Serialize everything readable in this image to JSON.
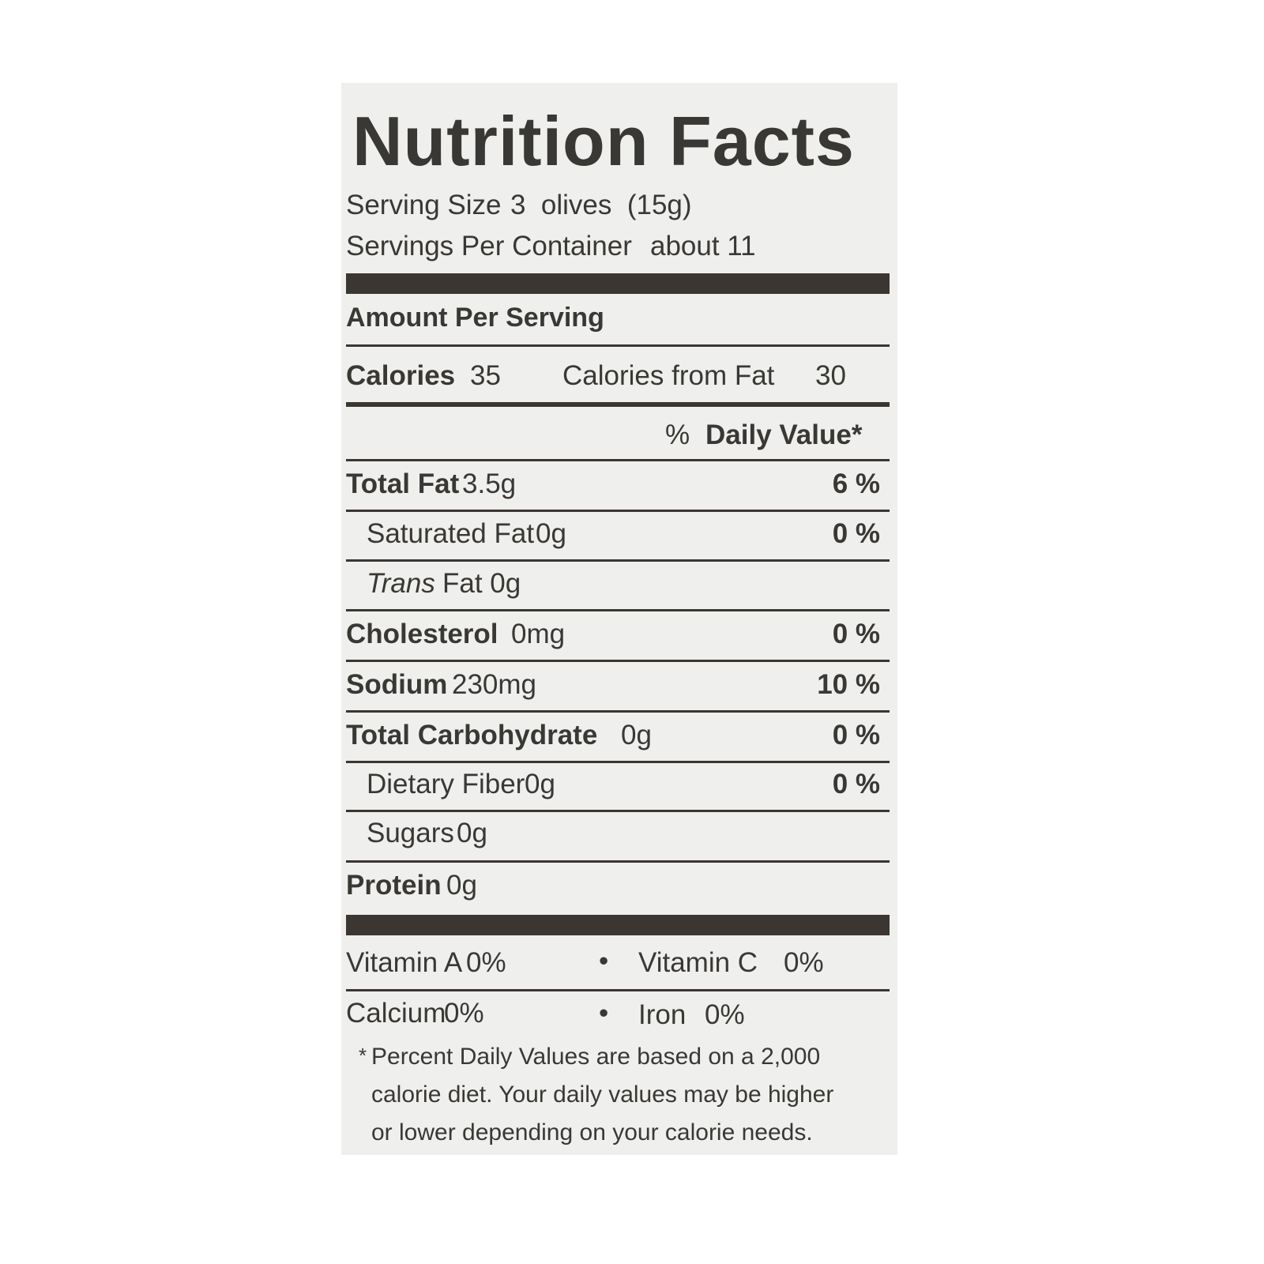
{
  "title": "Nutrition Facts",
  "serving_size_label": "Serving Size",
  "serving_size_value": "3  olives  (15g)",
  "servings_label": "Servings Per Container",
  "servings_value": "about 11",
  "amount_per_serving": "Amount Per Serving",
  "calories_label": "Calories",
  "calories_value": "35",
  "calories_fat_label": "Calories from Fat",
  "calories_fat_value": "30",
  "dv_header_pct": "%",
  "dv_header": "Daily Value*",
  "nutrients": [
    {
      "name": "Total Fat",
      "amount": "3.5g",
      "dv": "6 %"
    },
    {
      "name": "Saturated Fat",
      "amount": "0g",
      "dv": "0 %"
    },
    {
      "name": "Trans",
      "amount": "Fat 0g",
      "dv": ""
    },
    {
      "name": "Cholesterol",
      "amount": "0mg",
      "dv": "0 %"
    },
    {
      "name": "Sodium",
      "amount": "230mg",
      "dv": "10 %"
    },
    {
      "name": "Total Carbohydrate",
      "amount": "0g",
      "dv": "0 %"
    },
    {
      "name": "Dietary Fiber",
      "amount": "0g",
      "dv": "0 %"
    },
    {
      "name": "Sugars",
      "amount": "0g",
      "dv": ""
    },
    {
      "name": "Protein",
      "amount": "0g",
      "dv": ""
    }
  ],
  "vitamins": [
    {
      "name": "Vitamin A",
      "value": "0%"
    },
    {
      "name": "Vitamin C",
      "value": "0%"
    },
    {
      "name": "Calcium",
      "value": "0%"
    },
    {
      "name": "Iron",
      "value": "0%"
    }
  ],
  "bullet": "•",
  "footnote_star": "*",
  "footnote": [
    "Percent Daily Values are based on a 2,000",
    "calorie diet. Your daily values may be higher",
    "or lower depending on your calorie needs."
  ],
  "colors": {
    "background": "#efefed",
    "ink": "#3a3835"
  }
}
